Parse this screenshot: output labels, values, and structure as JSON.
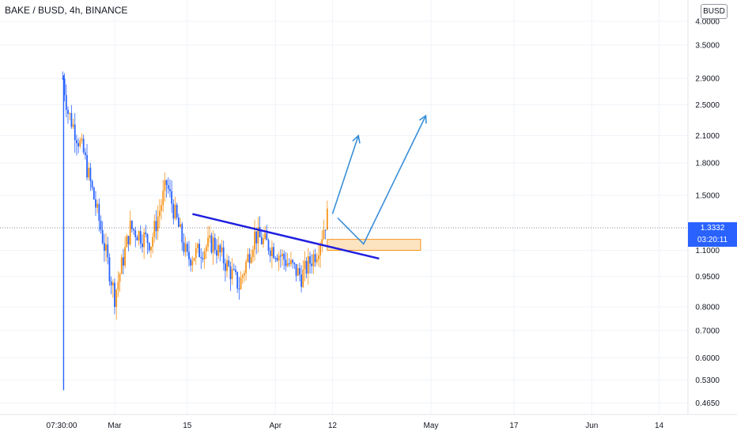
{
  "header": {
    "title": "BAKE / BUSD, 4h, BINANCE",
    "currency_button": "BUSD"
  },
  "last_price": {
    "value": "1.3332",
    "countdown": "03:20:11",
    "color": "#2962ff"
  },
  "colors": {
    "up": "#f7931a",
    "down": "#2962ff",
    "trendline": "#2020e0",
    "arrow": "#3a8fd8",
    "zone_fill": "#fcd9a6",
    "zone_border": "#f7931a"
  },
  "chart_data": {
    "type": "candlestick",
    "title": "BAKE / BUSD, 4h, BINANCE",
    "y_scale": "log",
    "ylim": [
      0.44,
      4.2
    ],
    "y_ticks": [
      "0.4650",
      "0.5300",
      "0.6000",
      "0.7000",
      "0.8000",
      "0.9500",
      "1.1000",
      "1.5000",
      "1.8000",
      "2.1000",
      "2.5000",
      "2.9000",
      "3.5000",
      "4.0000"
    ],
    "x_ticks": [
      "07:30:00",
      "Mar",
      "15",
      "Apr",
      "12",
      "May",
      "17",
      "Jun",
      "14"
    ],
    "approx_price_path": [
      {
        "x": "Feb 19",
        "y": 2.9
      },
      {
        "x": "Feb 20",
        "y": 2.4
      },
      {
        "x": "Feb 23",
        "y": 1.9
      },
      {
        "x": "Feb 26",
        "y": 1.3
      },
      {
        "x": "Mar 1",
        "y": 0.85
      },
      {
        "x": "Mar 4",
        "y": 1.25
      },
      {
        "x": "Mar 8",
        "y": 1.15
      },
      {
        "x": "Mar 11",
        "y": 1.6
      },
      {
        "x": "Mar 15",
        "y": 1.05
      },
      {
        "x": "Mar 20",
        "y": 1.15
      },
      {
        "x": "Mar 25",
        "y": 0.9
      },
      {
        "x": "Mar 28",
        "y": 1.2
      },
      {
        "x": "Apr 1",
        "y": 1.1
      },
      {
        "x": "Apr 6",
        "y": 0.95
      },
      {
        "x": "Apr 9",
        "y": 1.1
      },
      {
        "x": "Apr 11",
        "y": 1.3332
      }
    ],
    "wick_low": {
      "x": "Feb 19",
      "y": 0.5
    },
    "annotations": {
      "trendline": {
        "from": {
          "x": "Mar 16",
          "y": 1.35
        },
        "to": {
          "x": "Apr 21",
          "y": 1.05
        }
      },
      "support_zone": {
        "x_from": "Apr 11",
        "x_to": "Apr 29",
        "y_from": 1.1,
        "y_to": 1.17
      },
      "arrows": [
        {
          "from": {
            "x": "Apr 12",
            "y": 1.35
          },
          "to": {
            "x": "Apr 17",
            "y": 2.1
          }
        },
        {
          "from": {
            "x": "Apr 13",
            "y": 1.32
          },
          "via": {
            "x": "Apr 18",
            "y": 1.14
          },
          "to": {
            "x": "Apr 30",
            "y": 2.35
          }
        }
      ]
    }
  }
}
